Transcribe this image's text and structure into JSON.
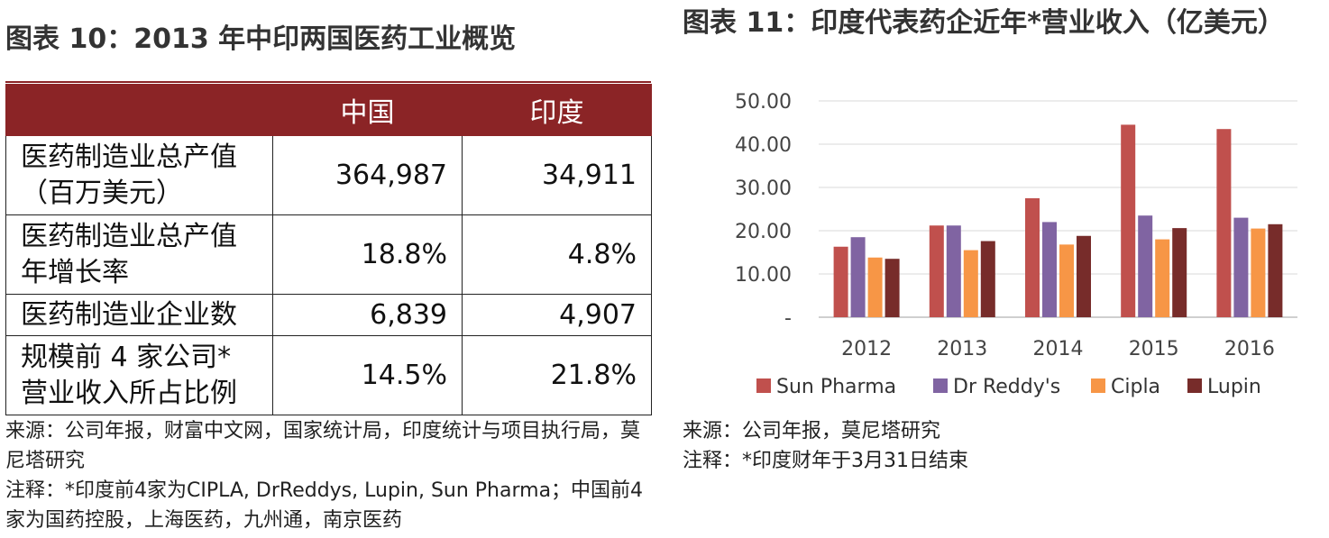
{
  "left": {
    "title": "图表 10：2013 年中印两国医药工业概览",
    "table": {
      "headers": [
        "",
        "中国",
        "印度"
      ],
      "rows": [
        {
          "label": "医药制造业总产值（百万美元）",
          "china": "364,987",
          "india": "34,911"
        },
        {
          "label": "医药制造业总产值年增长率",
          "china": "18.8%",
          "india": "4.8%"
        },
        {
          "label": "医药制造业企业数",
          "china": "6,839",
          "india": "4,907"
        },
        {
          "label": "规模前 4 家公司*营业收入所占比例",
          "china": "14.5%",
          "india": "21.8%"
        }
      ]
    },
    "source": "来源：公司年报，财富中文网，国家统计局，印度统计与项目执行局，莫尼塔研究",
    "note": "注释：*印度前4家为CIPLA, DrReddys, Lupin, Sun Pharma；中国前4家为国药控股，上海医药，九州通，南京医药"
  },
  "right": {
    "title": "图表  11：印度代表药企近年*营业收入（亿美元）",
    "source": "来源：公司年报，莫尼塔研究",
    "note": "注释：*印度财年于3月31日结束"
  },
  "chart_data": {
    "type": "bar",
    "title": "图表  11：印度代表药企近年*营业收入（亿美元）",
    "categories": [
      "2012",
      "2013",
      "2014",
      "2015",
      "2016"
    ],
    "series": [
      {
        "name": "Sun Pharma",
        "color": "#c0504d",
        "values": [
          16.3,
          21.2,
          27.5,
          44.5,
          43.5
        ]
      },
      {
        "name": "Dr Reddy's",
        "color": "#8064a2",
        "values": [
          18.5,
          21.2,
          22.0,
          23.5,
          23.0
        ]
      },
      {
        "name": "Cipla",
        "color": "#f79646",
        "values": [
          13.8,
          15.5,
          16.8,
          18.0,
          20.5
        ]
      },
      {
        "name": "Lupin",
        "color": "#772c2a",
        "values": [
          13.5,
          17.6,
          18.8,
          20.6,
          21.5
        ]
      }
    ],
    "yticks": [
      "-",
      "10.00",
      "20.00",
      "30.00",
      "40.00",
      "50.00"
    ],
    "ylim": [
      0,
      50
    ],
    "grid": true,
    "legend": "bottom"
  }
}
